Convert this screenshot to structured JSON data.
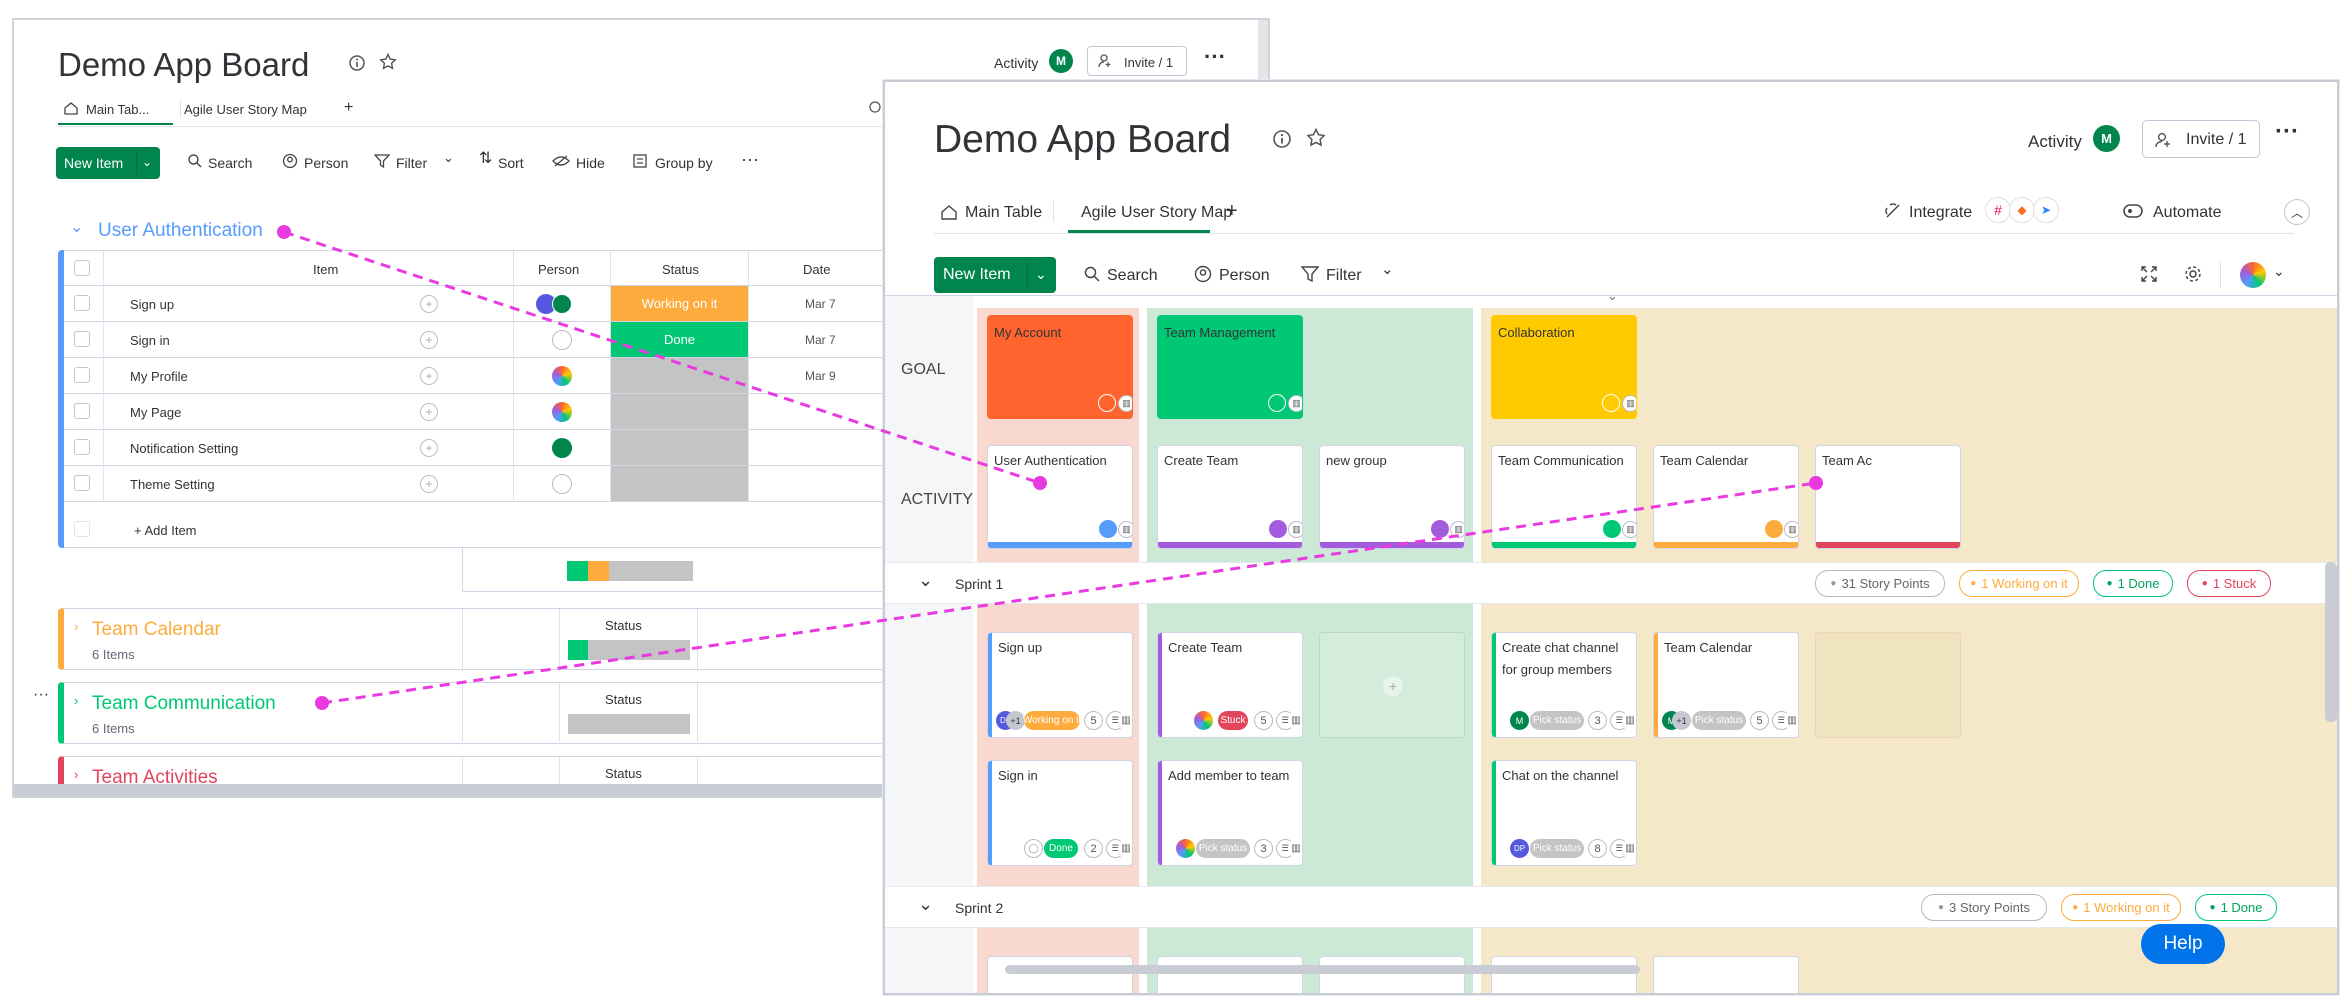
{
  "back": {
    "title": "Demo App Board",
    "activity": "Activity",
    "avatar": "M",
    "invite": "Invite / 1",
    "tabs": [
      "Main Tab...",
      "Agile User Story Map",
      "+"
    ],
    "toolbar": {
      "new_item": "New Item",
      "search": "Search",
      "person": "Person",
      "filter": "Filter",
      "sort": "Sort",
      "hide": "Hide",
      "group_by": "Group by"
    },
    "group": {
      "title": "User Authentication",
      "columns": [
        "Item",
        "Person",
        "Status",
        "Date"
      ],
      "rows": [
        {
          "item": "Sign up",
          "status": "Working on it",
          "date": "Mar 7",
          "status_color": "#fdab3d"
        },
        {
          "item": "Sign in",
          "status": "Done",
          "date": "Mar 7",
          "status_color": "#00c875"
        },
        {
          "item": "My Profile",
          "status": "",
          "date": "Mar 9",
          "status_color": "#c4c4c4"
        },
        {
          "item": "My Page",
          "status": "",
          "date": "",
          "status_color": "#c4c4c4"
        },
        {
          "item": "Notification Setting",
          "status": "",
          "date": "",
          "status_color": "#c4c4c4"
        },
        {
          "item": "Theme Setting",
          "status": "",
          "date": "",
          "status_color": "#c4c4c4"
        }
      ],
      "add_item": "+ Add Item"
    },
    "groups": [
      {
        "title": "Team Calendar",
        "sub": "6 Items",
        "status": "Status",
        "color": "#fdab3d"
      },
      {
        "title": "Team Communication",
        "sub": "6 Items",
        "status": "Status",
        "color": "#00c875"
      },
      {
        "title": "Team Activities",
        "sub": "",
        "status": "Status",
        "color": "#e2445c"
      }
    ]
  },
  "front": {
    "title": "Demo App Board",
    "activity": "Activity",
    "avatar": "M",
    "invite": "Invite / 1",
    "tabs": [
      "Main Table",
      "Agile User Story Map",
      "+"
    ],
    "integrate": "Integrate",
    "automate": "Automate",
    "toolbar": {
      "new_item": "New Item",
      "search": "Search",
      "person": "Person",
      "filter": "Filter"
    },
    "row_labels": {
      "goal": "GOAL",
      "activity": "ACTIVITY"
    },
    "goals": [
      {
        "label": "My Account",
        "color": "#ff642e"
      },
      {
        "label": "Team Management",
        "color": "#00c875"
      },
      {
        "label": "Collaboration",
        "color": "#ffcb00"
      }
    ],
    "activities": [
      "User Authentication",
      "Create Team",
      "new group",
      "Team Communication",
      "Team Calendar",
      "Team Ac"
    ],
    "sprint1": {
      "label": "Sprint 1",
      "points": "31 Story Points",
      "working": "1 Working on it",
      "done": "1 Done",
      "stuck": "1 Stuck"
    },
    "sprint2": {
      "label": "Sprint 2",
      "points": "3 Story Points",
      "working": "1 Working on it",
      "done": "1 Done"
    },
    "stories": {
      "signup": {
        "title": "Sign up",
        "status": "Working on it",
        "points": "5",
        "av": "DP",
        "more": "+1"
      },
      "signin": {
        "title": "Sign in",
        "status": "Done",
        "points": "2"
      },
      "createteam": {
        "title": "Create Team",
        "status": "Stuck",
        "points": "5"
      },
      "addmember": {
        "title": "Add member to team",
        "status": "Pick status",
        "points": "3"
      },
      "chatchannel": {
        "title": "Create chat channel for group members",
        "status": "Pick status",
        "points": "3",
        "av": "M"
      },
      "teamcal": {
        "title": "Team Calendar",
        "status": "Pick status",
        "points": "5",
        "av": "M",
        "more": "+1"
      },
      "chat": {
        "title": "Chat on the channel",
        "status": "Pick status",
        "points": "8",
        "av": "DP"
      }
    },
    "help": "Help",
    "colors": {
      "accent": "#00854d",
      "working": "#fdab3d",
      "done": "#00c875",
      "stuck": "#e2445c",
      "pick": "#c4c4c4",
      "annotation": "#e83ae0"
    }
  }
}
